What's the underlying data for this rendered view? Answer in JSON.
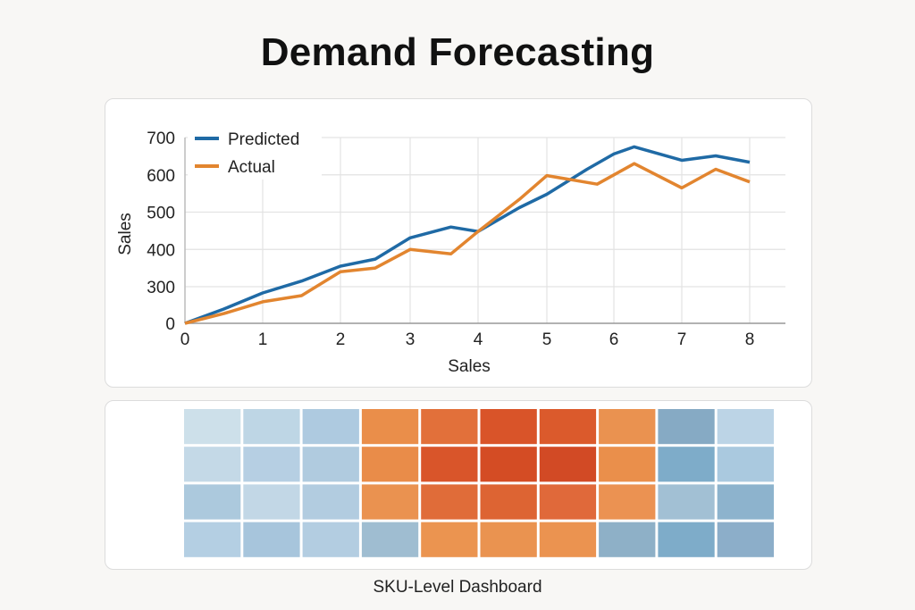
{
  "page": {
    "title": "Demand Forecasting",
    "footer": "SKU-Level Dashboard"
  },
  "chart_data": [
    {
      "type": "line",
      "xlabel": "Sales",
      "ylabel": "Sales",
      "xlim": [
        0,
        8.5
      ],
      "ylim": [
        0,
        700
      ],
      "x_ticks": [
        "0",
        "1",
        "2",
        "3",
        "4",
        "5",
        "6",
        "7",
        "8"
      ],
      "y_ticks": [
        "0",
        "300",
        "400",
        "500",
        "600",
        "700"
      ],
      "grid": true,
      "legend": "top-left",
      "series": [
        {
          "name": "Predicted",
          "color": "#1f6aa5",
          "x": [
            0,
            0.5,
            1,
            1.5,
            2,
            2.5,
            3,
            3.6,
            4,
            4.6,
            5,
            5.6,
            6,
            6.3,
            7,
            7.5,
            8
          ],
          "y": [
            0,
            117,
            249,
            315,
            355,
            374,
            431,
            460,
            448,
            512,
            548,
            615,
            656,
            675,
            639,
            651,
            634
          ]
        },
        {
          "name": "Actual",
          "color": "#e2852f",
          "x": [
            0,
            0.5,
            1,
            1.5,
            2,
            2.5,
            3,
            3.6,
            4,
            4.6,
            5,
            5.75,
            6.3,
            7,
            7.5,
            8
          ],
          "y": [
            0,
            80,
            176,
            227,
            340,
            350,
            400,
            388,
            448,
            534,
            598,
            575,
            630,
            565,
            615,
            581
          ]
        }
      ]
    },
    {
      "type": "heatmap",
      "title": "SKU-Level Dashboard",
      "rows": 4,
      "cols": 10,
      "values": [
        [
          0.15,
          0.22,
          0.3,
          0.62,
          0.78,
          0.9,
          0.86,
          0.64,
          0.42,
          0.24
        ],
        [
          0.2,
          0.26,
          0.28,
          0.64,
          0.9,
          1.0,
          0.96,
          0.64,
          0.46,
          0.3
        ],
        [
          0.32,
          0.2,
          0.3,
          0.6,
          0.8,
          0.82,
          0.8,
          0.62,
          0.36,
          0.4
        ],
        [
          0.28,
          0.34,
          0.26,
          0.36,
          0.6,
          0.6,
          0.6,
          0.4,
          0.48,
          0.42
        ]
      ],
      "colors": [
        [
          "#cde0ea",
          "#bed6e5",
          "#aecae0",
          "#ea8e4a",
          "#e2703a",
          "#d95429",
          "#db5a2c",
          "#ea9250",
          "#86aac4",
          "#bcd4e6"
        ],
        [
          "#c4d9e7",
          "#b6cfe3",
          "#b0cbdf",
          "#e98c49",
          "#d9552a",
          "#d44c24",
          "#d24a25",
          "#ea8f4b",
          "#7eacc9",
          "#aac9df"
        ],
        [
          "#acc9dd",
          "#c2d7e6",
          "#b2cce0",
          "#ea9250",
          "#e06c39",
          "#dd6433",
          "#e0693a",
          "#eb9252",
          "#a2c0d4",
          "#8db3cd"
        ],
        [
          "#b4cfe3",
          "#a7c5dc",
          "#b3cde1",
          "#9fbdd1",
          "#eb9450",
          "#ea9350",
          "#eb9350",
          "#8eb0c7",
          "#7eacc9",
          "#8caec9"
        ]
      ]
    }
  ]
}
